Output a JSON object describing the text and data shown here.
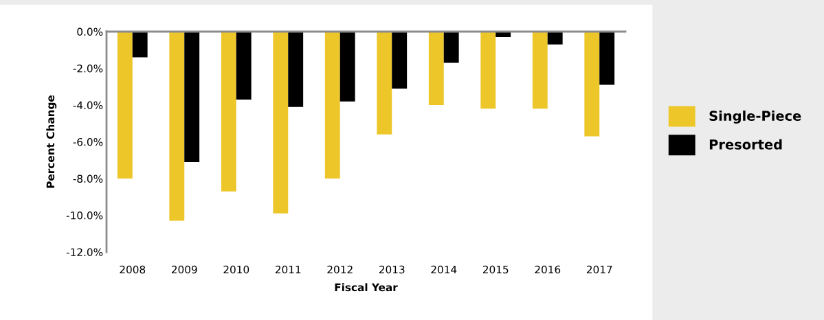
{
  "chart_data": {
    "type": "bar",
    "xlabel": "Fiscal Year",
    "ylabel": "Percent Change",
    "categories": [
      "2008",
      "2009",
      "2010",
      "2011",
      "2012",
      "2013",
      "2014",
      "2015",
      "2016",
      "2017"
    ],
    "series": [
      {
        "name": "Single-Piece",
        "color": "#edc62a",
        "values": [
          -8.0,
          -10.3,
          -8.7,
          -9.9,
          -8.0,
          -5.6,
          -4.0,
          -4.2,
          -4.2,
          -5.7
        ]
      },
      {
        "name": "Presorted",
        "color": "#000000",
        "values": [
          -1.4,
          -7.1,
          -3.7,
          -4.1,
          -3.8,
          -3.1,
          -1.7,
          -0.3,
          -0.7,
          -2.9
        ]
      }
    ],
    "ylim": [
      -12,
      0
    ],
    "yticks": [
      {
        "value": 0,
        "label": "0.0%"
      },
      {
        "value": -2,
        "label": "-2.0%"
      },
      {
        "value": -4,
        "label": "-4.0%"
      },
      {
        "value": -6,
        "label": "-6.0%"
      },
      {
        "value": -8,
        "label": "-8.0%"
      },
      {
        "value": -10,
        "label": "-10.0%"
      },
      {
        "value": -12,
        "label": "-12.0%"
      }
    ],
    "grid": false,
    "legend": "right"
  }
}
